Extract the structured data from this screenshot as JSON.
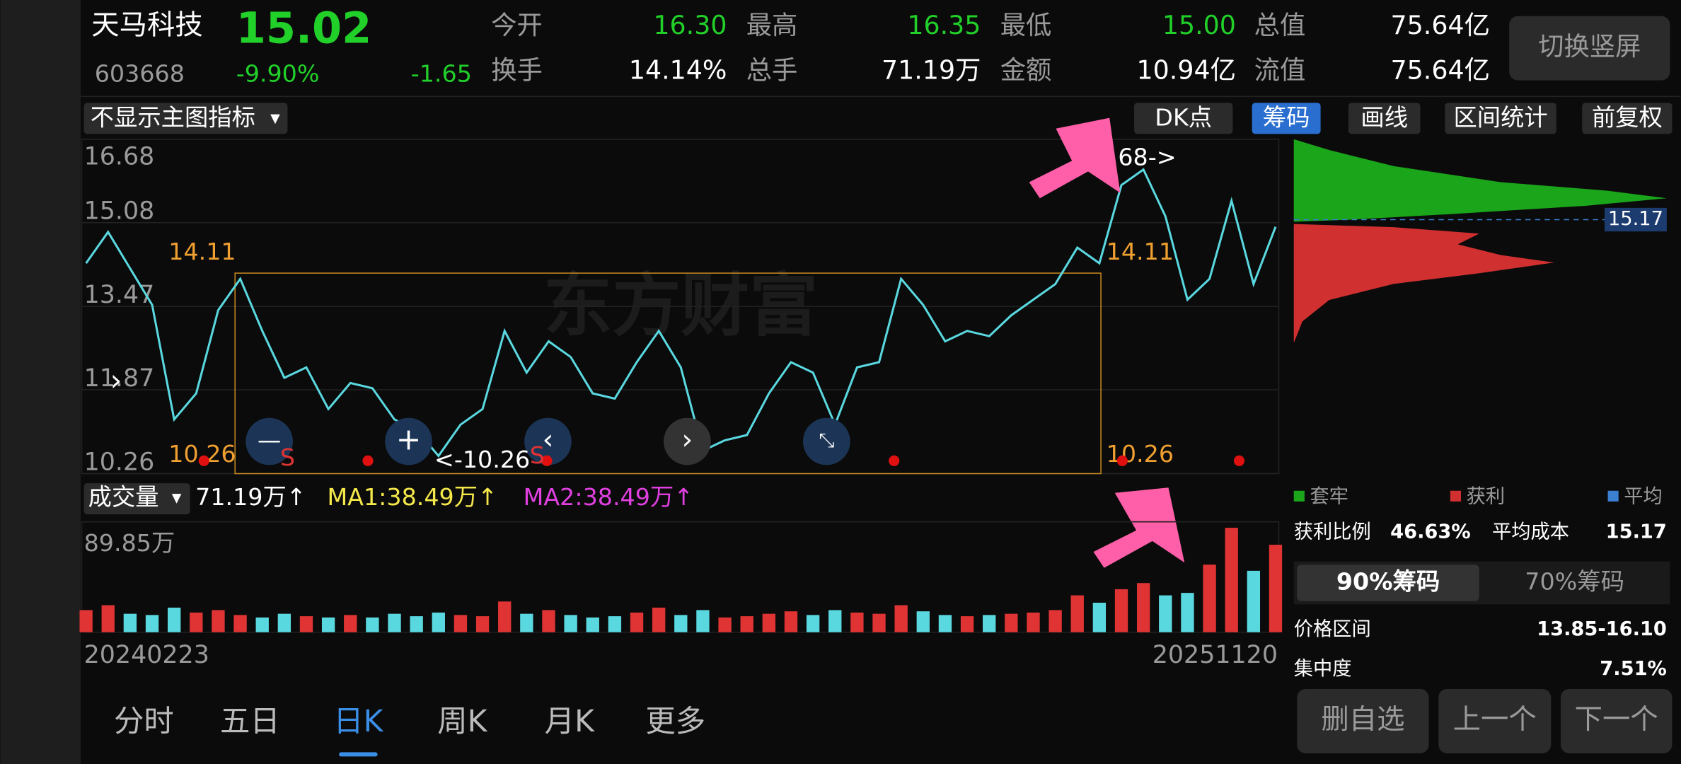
{
  "header": {
    "name": "天马科技",
    "price": "15.02",
    "code": "603668",
    "change_pct": "-9.90%",
    "change": "-1.65",
    "stats": [
      [
        "今开",
        "16.30"
      ],
      [
        "最高",
        "16.35"
      ],
      [
        "最低",
        "15.00"
      ],
      [
        "总值",
        "75.64亿"
      ],
      [
        "换手",
        "14.14%"
      ],
      [
        "总手",
        "71.19万"
      ],
      [
        "金额",
        "10.94亿"
      ],
      [
        "流值",
        "75.64亿"
      ]
    ],
    "orientation_button": "切换竖屏"
  },
  "toolbar": {
    "indicator": "不显示主图指标",
    "buttons": [
      "DK点",
      "筹码",
      "画线",
      "区间统计",
      "前复权"
    ]
  },
  "chart_data": [
    {
      "type": "line",
      "watermark": "东方财富",
      "color": "#5ad8e0",
      "categories": [
        "20240223",
        null,
        null,
        null,
        null,
        null,
        null,
        null,
        null,
        null,
        null,
        null,
        null,
        null,
        null,
        null,
        null,
        null,
        null,
        null,
        null,
        null,
        null,
        null,
        null,
        null,
        null,
        null,
        null,
        null,
        null,
        null,
        null,
        null,
        null,
        null,
        null,
        null,
        null,
        null,
        null,
        null,
        null,
        null,
        null,
        null,
        null,
        null,
        null,
        null,
        null,
        null,
        null,
        null,
        "20251120"
      ],
      "values": [
        14.3,
        14.9,
        14.2,
        13.5,
        11.3,
        11.8,
        13.4,
        14.0,
        13.0,
        12.1,
        12.3,
        11.5,
        12.0,
        11.9,
        11.3,
        11.1,
        10.6,
        11.2,
        11.5,
        13.0,
        12.2,
        12.8,
        12.5,
        11.8,
        11.7,
        12.4,
        13.0,
        12.3,
        10.7,
        10.9,
        11.0,
        11.8,
        12.4,
        12.2,
        11.2,
        12.3,
        12.4,
        14.0,
        13.5,
        12.8,
        13.0,
        12.9,
        13.3,
        13.6,
        13.9,
        14.6,
        14.3,
        15.8,
        16.1,
        15.2,
        13.6,
        14.0,
        15.5,
        13.9,
        15.0
      ],
      "ylim": [
        10.26,
        16.68
      ],
      "yticks": [
        10.26,
        11.87,
        13.47,
        15.08,
        16.68
      ],
      "range_box": {
        "high": 14.11,
        "low": 10.26
      },
      "annotations": [
        "<-10.26",
        "68->"
      ],
      "markers": [
        "S",
        "S"
      ]
    },
    {
      "type": "bar",
      "title": "成交量",
      "up_color": "#e03434",
      "down_color": "#5ad8e0",
      "values": [
        18,
        22,
        15,
        14,
        20,
        16,
        18,
        14,
        12,
        15,
        13,
        12,
        14,
        12,
        15,
        13,
        16,
        14,
        13,
        25,
        15,
        18,
        14,
        12,
        13,
        16,
        20,
        14,
        18,
        12,
        13,
        15,
        17,
        14,
        18,
        16,
        15,
        22,
        17,
        14,
        13,
        14,
        15,
        16,
        18,
        30,
        24,
        35,
        40,
        30,
        32,
        55,
        85,
        50,
        71.19
      ],
      "ylim": [
        0,
        89.85
      ],
      "yticks": [
        {
          "value": 89.85,
          "label": "89.85万"
        }
      ],
      "indicators": [
        "71.19万↑",
        "MA1:38.49万↑",
        "MA2:38.49万↑"
      ]
    }
  ],
  "chip": {
    "legend": [
      "套牢",
      "获利",
      "平均"
    ],
    "profit_ratio_label": "获利比例",
    "profit_ratio": "46.63%",
    "avg_cost_label": "平均成本",
    "avg_cost": "15.17",
    "tabs": [
      "90%筹码",
      "70%筹码"
    ],
    "price_range_label": "价格区间",
    "price_range": "13.85-16.10",
    "concentration_label": "集中度",
    "concentration": "7.51%"
  },
  "actions": [
    "删自选",
    "上一个",
    "下一个"
  ],
  "period_tabs": [
    "分时",
    "五日",
    "日K",
    "周K",
    "月K",
    "更多"
  ]
}
